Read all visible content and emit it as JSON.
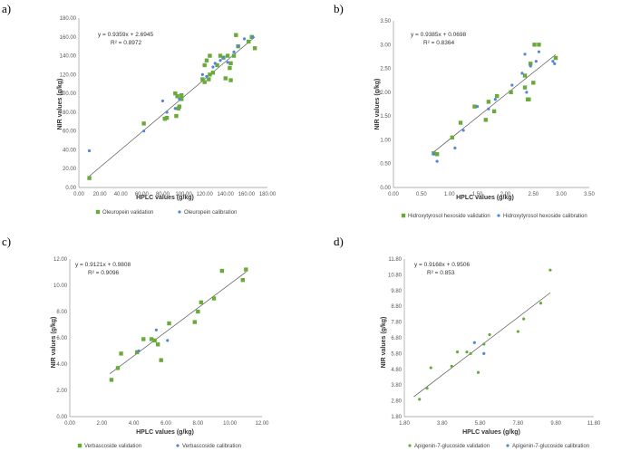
{
  "colors": {
    "validation": "#6aaa3a",
    "calibration": "#4f86e0",
    "trend": "#555555",
    "axis": "#999999"
  },
  "chart_data": [
    {
      "panel": "a)",
      "type": "scatter",
      "xlabel": "HPLC values (g/kg)",
      "ylabel": "NIR values (g/kg)",
      "xlim": [
        0,
        180
      ],
      "ylim": [
        0,
        180
      ],
      "xticks": [
        "0.00",
        "20.00",
        "40.00",
        "60.00",
        "80.00",
        "100.00",
        "120.00",
        "140.00",
        "160.00",
        "180.00"
      ],
      "yticks": [
        "0.00",
        "20.00",
        "40.00",
        "60.00",
        "80.00",
        "100.00",
        "120.00",
        "140.00",
        "160.00",
        "180.00"
      ],
      "equation": "y = 0.9359x + 2.6945",
      "r2": "R² = 0.8972",
      "trendline": {
        "slope": 0.9359,
        "intercept": 2.6945,
        "x_range": [
          10,
          168
        ]
      },
      "series": [
        {
          "name": "Oleuropein  validation",
          "marker": "square",
          "points": [
            [
              10,
              10
            ],
            [
              62,
              68
            ],
            [
              82,
              73
            ],
            [
              84,
              74
            ],
            [
              92,
              100
            ],
            [
              94,
              97
            ],
            [
              95,
              84
            ],
            [
              96,
              86
            ],
            [
              93,
              76
            ],
            [
              98,
              94
            ],
            [
              98,
              98
            ],
            [
              118,
              115
            ],
            [
              120,
              112
            ],
            [
              120,
              130
            ],
            [
              122,
              135
            ],
            [
              124,
              115
            ],
            [
              125,
              120
            ],
            [
              125,
              140
            ],
            [
              128,
              122
            ],
            [
              132,
              130
            ],
            [
              135,
              140
            ],
            [
              138,
              138
            ],
            [
              140,
              116
            ],
            [
              142,
              140
            ],
            [
              144,
              127
            ],
            [
              145,
              114
            ],
            [
              145,
              132
            ],
            [
              148,
              140
            ],
            [
              150,
              162
            ],
            [
              152,
              150
            ],
            [
              162,
              155
            ],
            [
              165,
              160
            ],
            [
              168,
              148
            ]
          ]
        },
        {
          "name": "Oleuropein calibration",
          "marker": "circle",
          "points": [
            [
              10,
              39
            ],
            [
              62,
              60
            ],
            [
              80,
              92
            ],
            [
              84,
              80
            ],
            [
              92,
              84
            ],
            [
              96,
              94
            ],
            [
              118,
              120
            ],
            [
              122,
              118
            ],
            [
              128,
              128
            ],
            [
              130,
              132
            ],
            [
              135,
              135
            ],
            [
              138,
              138
            ],
            [
              142,
              133
            ],
            [
              148,
              144
            ],
            [
              152,
              150
            ],
            [
              158,
              158
            ],
            [
              166,
              160
            ]
          ]
        }
      ]
    },
    {
      "panel": "b)",
      "type": "scatter",
      "xlabel": "HPLC values (g/kg)",
      "ylabel": "NIR values (g/kg)",
      "xlim": [
        0,
        3.5
      ],
      "ylim": [
        0,
        3.5
      ],
      "xticks": [
        "0.00",
        "0.50",
        "1.00",
        "1.50",
        "2.00",
        "2.50",
        "3.00",
        "3.50"
      ],
      "yticks": [
        "0.00",
        "0.50",
        "1.00",
        "1.50",
        "2.00",
        "2.50",
        "3.00",
        "3.50"
      ],
      "equation": "y = 0.9385x + 0.0698",
      "r2": "R² = 0.8364",
      "trendline": {
        "slope": 0.9385,
        "intercept": 0.0698,
        "x_range": [
          0.7,
          2.9
        ]
      },
      "series": [
        {
          "name": "Hidroxytyrosol hexoside validation",
          "marker": "square",
          "points": [
            [
              0.72,
              0.72
            ],
            [
              0.78,
              0.7
            ],
            [
              1.05,
              1.05
            ],
            [
              1.2,
              1.36
            ],
            [
              1.45,
              1.7
            ],
            [
              1.65,
              1.42
            ],
            [
              1.7,
              1.8
            ],
            [
              1.8,
              1.6
            ],
            [
              1.85,
              1.92
            ],
            [
              2.1,
              2.0
            ],
            [
              2.35,
              2.1
            ],
            [
              2.35,
              2.35
            ],
            [
              2.4,
              1.85
            ],
            [
              2.42,
              1.85
            ],
            [
              2.45,
              2.6
            ],
            [
              2.5,
              2.2
            ],
            [
              2.52,
              3.0
            ],
            [
              2.6,
              3.0
            ],
            [
              2.9,
              2.72
            ]
          ]
        },
        {
          "name": "Hidroxytyrosol hexoside calibration",
          "marker": "circle",
          "points": [
            [
              0.72,
              0.7
            ],
            [
              0.78,
              0.55
            ],
            [
              1.1,
              0.83
            ],
            [
              1.25,
              1.2
            ],
            [
              1.5,
              1.7
            ],
            [
              1.7,
              1.65
            ],
            [
              1.82,
              1.85
            ],
            [
              2.12,
              2.15
            ],
            [
              2.3,
              2.4
            ],
            [
              2.35,
              2.8
            ],
            [
              2.38,
              2.0
            ],
            [
              2.45,
              2.55
            ],
            [
              2.55,
              2.65
            ],
            [
              2.6,
              2.85
            ],
            [
              2.85,
              2.65
            ],
            [
              2.88,
              2.6
            ]
          ]
        }
      ]
    },
    {
      "panel": "c)",
      "type": "scatter",
      "xlabel": "HPLC values (g/kg)",
      "ylabel": "NIR values (g/kg)",
      "xlim": [
        0,
        12
      ],
      "ylim": [
        0,
        12
      ],
      "xticks": [
        "0.00",
        "2.00",
        "4.00",
        "6.00",
        "8.00",
        "10.00",
        "12.00"
      ],
      "yticks": [
        "0.00",
        "2.00",
        "4.00",
        "6.00",
        "8.00",
        "10.00",
        "12.00"
      ],
      "equation": "y = 0.9121x + 0.9808",
      "r2": "R² = 0.9096",
      "trendline": {
        "slope": 0.9121,
        "intercept": 0.9808,
        "x_range": [
          2.5,
          11
        ]
      },
      "series": [
        {
          "name": "Verbascoside validation",
          "marker": "square",
          "points": [
            [
              2.6,
              2.8
            ],
            [
              3.0,
              3.7
            ],
            [
              3.2,
              4.8
            ],
            [
              4.2,
              4.9
            ],
            [
              4.6,
              5.9
            ],
            [
              5.1,
              5.9
            ],
            [
              5.3,
              5.8
            ],
            [
              5.5,
              5.5
            ],
            [
              5.7,
              4.3
            ],
            [
              6.2,
              7.1
            ],
            [
              7.8,
              7.2
            ],
            [
              8.0,
              8.0
            ],
            [
              8.2,
              8.7
            ],
            [
              9.0,
              9.0
            ],
            [
              9.5,
              11.1
            ],
            [
              10.8,
              10.4
            ],
            [
              11.0,
              11.2
            ]
          ]
        },
        {
          "name": "Verbascoside calibration",
          "marker": "circle",
          "points": [
            [
              4.3,
              5.0
            ],
            [
              5.4,
              6.6
            ],
            [
              6.1,
              5.8
            ]
          ]
        }
      ]
    },
    {
      "panel": "d)",
      "type": "scatter",
      "xlabel": "HPLC values (g/kg)",
      "ylabel": "NIR values (g/kg)",
      "xlim": [
        1.8,
        11.8
      ],
      "ylim": [
        1.8,
        11.8
      ],
      "xticks": [
        "1.80",
        "3.80",
        "5.80",
        "7.80",
        "9.80",
        "11.80"
      ],
      "yticks": [
        "1.80",
        "2.80",
        "3.80",
        "4.80",
        "5.80",
        "6.80",
        "7.80",
        "8.80",
        "9.80",
        "10.80",
        "11.80"
      ],
      "equation": "y = 0.9168x + 0.9506",
      "r2": "R² = 0.853",
      "trendline": {
        "slope": 0.9168,
        "intercept": 0.9506,
        "x_range": [
          2.3,
          9.5
        ]
      },
      "series": [
        {
          "name": "Apigenin-7-glucoside validation",
          "marker": "circle",
          "points": [
            [
              2.6,
              2.9
            ],
            [
              3.0,
              3.6
            ],
            [
              3.2,
              4.9
            ],
            [
              4.3,
              5.0
            ],
            [
              4.6,
              5.9
            ],
            [
              5.1,
              5.9
            ],
            [
              5.3,
              5.8
            ],
            [
              5.7,
              4.6
            ],
            [
              6.0,
              6.4
            ],
            [
              6.3,
              7.0
            ],
            [
              7.8,
              7.2
            ],
            [
              8.1,
              8.0
            ],
            [
              9.0,
              9.0
            ],
            [
              9.5,
              11.1
            ]
          ]
        },
        {
          "name": "Apigenin-7-glucoside calibration",
          "marker": "circle",
          "points": [
            [
              5.5,
              6.5
            ],
            [
              6.0,
              5.8
            ]
          ]
        }
      ]
    }
  ]
}
